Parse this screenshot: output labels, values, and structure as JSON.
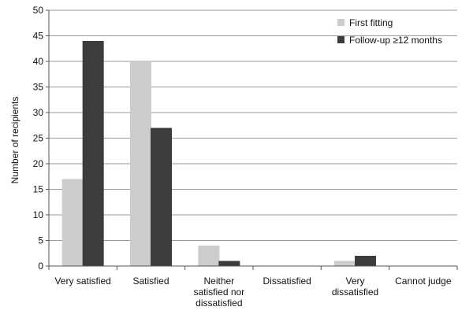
{
  "chart_data": {
    "type": "bar",
    "title": "",
    "xlabel": "",
    "ylabel": "Number of recipients",
    "ylim": [
      0,
      50
    ],
    "yticks": [
      0,
      5,
      10,
      15,
      20,
      25,
      30,
      35,
      40,
      45,
      50
    ],
    "grid": true,
    "legend_position": "top-right",
    "categories": [
      [
        "Very satisfied"
      ],
      [
        "Satisfied"
      ],
      [
        "Neither",
        "satisfied nor",
        "dissatisfied"
      ],
      [
        "Dissatisfied"
      ],
      [
        "Very",
        "dissatisfied"
      ],
      [
        "Cannot judge"
      ]
    ],
    "series": [
      {
        "name": "First fitting",
        "color": "#cccccc",
        "values": [
          17,
          40,
          4,
          0,
          1,
          0
        ]
      },
      {
        "name": "Follow-up ≥12 months",
        "color": "#3c3c3c",
        "values": [
          44,
          27,
          1,
          0,
          2,
          0
        ]
      }
    ]
  }
}
